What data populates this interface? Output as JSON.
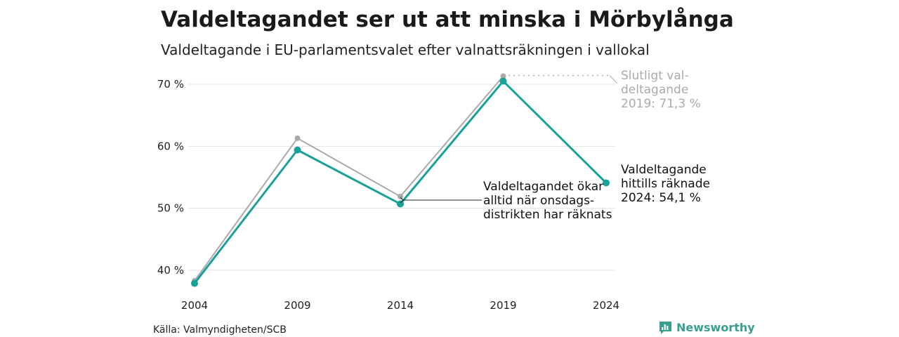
{
  "chart_data": {
    "type": "line",
    "title": "Valdeltagandet ser ut att minska i Mörbylånga",
    "subtitle": "Valdeltagande i EU-parlamentsvalet efter valnattsräkningen i vallokal",
    "x": [
      "2004",
      "2009",
      "2014",
      "2019",
      "2024"
    ],
    "ylim": [
      37.5,
      72
    ],
    "y_ticks": [
      40,
      50,
      60,
      70
    ],
    "y_tick_labels": [
      "40 %",
      "50 %",
      "60 %",
      "70 %"
    ],
    "grid": true,
    "series": [
      {
        "name": "Slutligt valdeltagande",
        "values": [
          38.3,
          61.3,
          51.9,
          71.3,
          null
        ],
        "color": "#aaaaaa"
      },
      {
        "name": "Valdeltagande efter valnattsräkningen",
        "values": [
          37.9,
          59.4,
          50.7,
          70.5,
          54.1
        ],
        "color": "#17a197"
      }
    ],
    "annotations": {
      "final_2019": [
        "Slutligt val-",
        "deltagande",
        "2019: 71,3 %"
      ],
      "counted_2024": [
        "Valdeltagande",
        "hittills räknade",
        "2024: 54,1 %"
      ],
      "wednesday": [
        "Valdeltagandet ökar",
        "alltid när onsdags-",
        "distrikten har räknats"
      ]
    }
  },
  "footer": {
    "source": "Källa: Valmyndigheten/SCB",
    "brand": "Newsworthy",
    "brand_icon": "bar-chart-speech-icon",
    "brand_color": "#3a9e8d"
  }
}
